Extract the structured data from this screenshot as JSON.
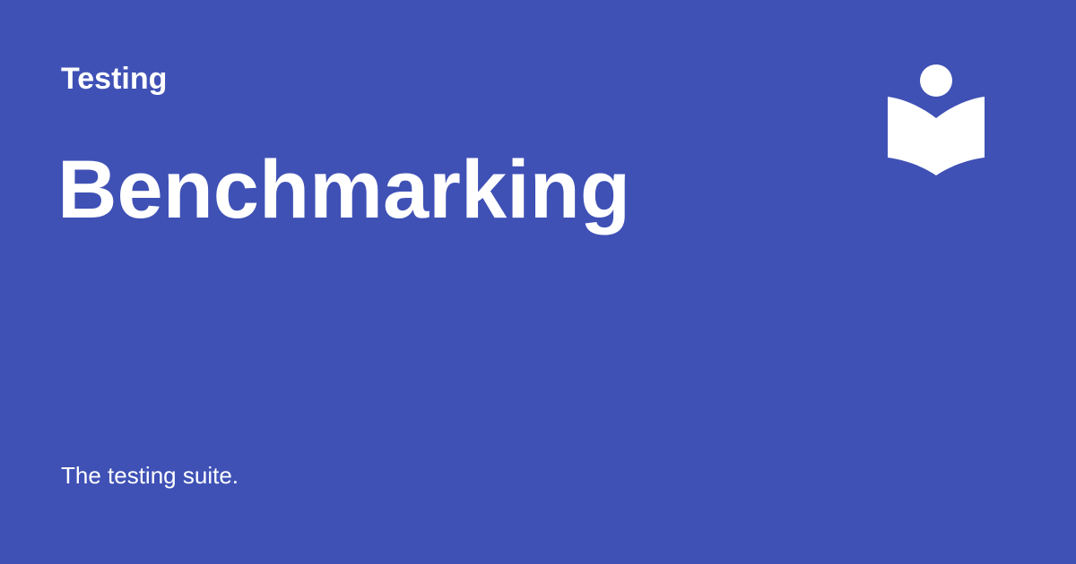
{
  "social_card": {
    "section": "Testing",
    "title": "Benchmarking",
    "description": "The testing suite.",
    "logo_icon": "reader-book-icon",
    "colors": {
      "background": "#3f51b5",
      "foreground": "#ffffff"
    }
  }
}
